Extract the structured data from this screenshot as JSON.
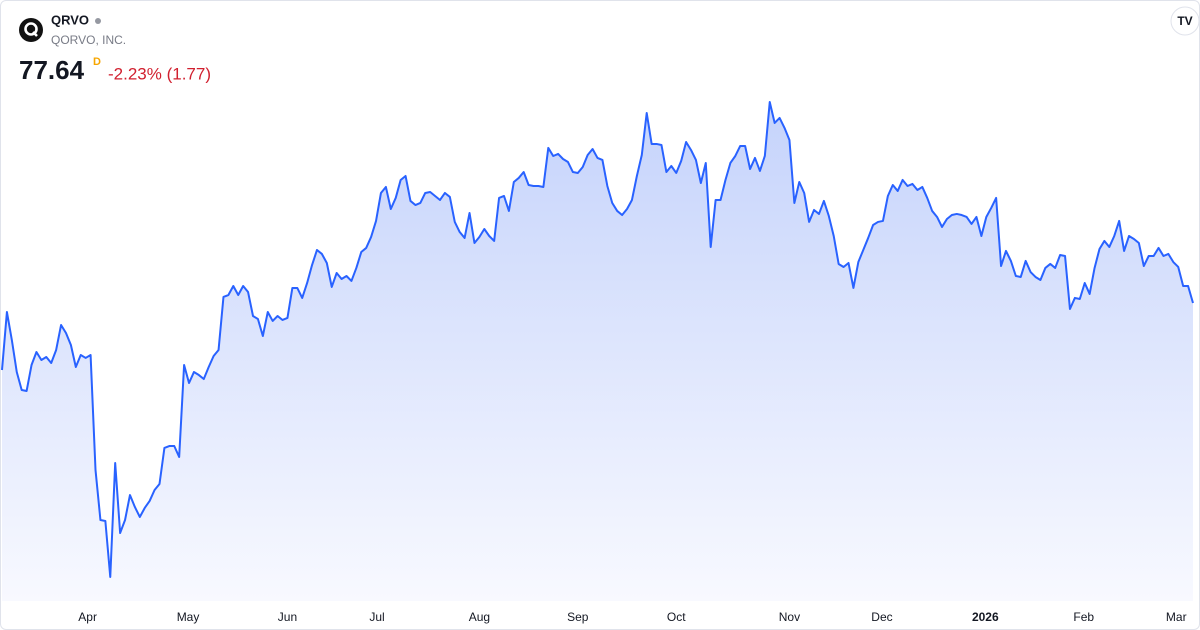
{
  "header": {
    "symbol": "QRVO",
    "company": "QORVO, INC.",
    "price": "77.64",
    "interval": "D",
    "change": "-2.23% (1.77)"
  },
  "chart_data": {
    "type": "area",
    "series": [
      {
        "color": "#2962ff",
        "values": [
          70.74,
          76.71,
          73.83,
          70.53,
          68.68,
          68.58,
          71.25,
          72.59,
          71.77,
          72.08,
          71.46,
          72.8,
          75.37,
          74.55,
          73.31,
          71.05,
          72.28,
          71.98,
          72.28,
          60.44,
          55.29,
          55.19,
          49.42,
          61.16,
          53.95,
          55.29,
          57.86,
          56.63,
          55.6,
          56.53,
          57.25,
          58.38,
          59.0,
          62.71,
          62.91,
          62.91,
          61.78,
          71.25,
          69.4,
          70.53,
          70.22,
          69.81,
          71.05,
          72.18,
          72.8,
          78.26,
          78.46,
          79.39,
          78.46,
          79.39,
          78.77,
          76.3,
          75.99,
          74.24,
          76.71,
          75.79,
          76.3,
          75.89,
          76.1,
          79.19,
          79.19,
          78.16,
          79.7,
          81.55,
          83.1,
          82.69,
          81.76,
          79.29,
          80.73,
          80.11,
          80.42,
          79.91,
          81.25,
          82.89,
          83.31,
          84.44,
          86.09,
          88.97,
          89.59,
          87.32,
          88.46,
          90.31,
          90.72,
          88.15,
          87.73,
          87.94,
          88.97,
          89.07,
          88.66,
          88.25,
          88.97,
          88.56,
          85.99,
          84.95,
          84.34,
          86.91,
          83.82,
          84.44,
          85.26,
          84.54,
          84.03,
          88.46,
          88.66,
          87.12,
          90.1,
          90.52,
          91.13,
          89.79,
          89.69,
          89.69,
          89.59,
          93.61,
          92.78,
          92.99,
          92.47,
          92.16,
          91.13,
          91.03,
          91.65,
          92.88,
          93.5,
          92.58,
          92.37,
          89.69,
          87.94,
          87.12,
          86.7,
          87.32,
          88.25,
          90.72,
          92.88,
          97.21,
          94.02,
          94.02,
          93.91,
          91.13,
          91.75,
          91.03,
          92.27,
          94.22,
          93.4,
          92.37,
          90.0,
          92.06,
          83.41,
          88.25,
          88.25,
          90.31,
          92.06,
          92.78,
          93.81,
          93.81,
          91.44,
          92.58,
          91.24,
          92.78,
          98.34,
          96.18,
          96.7,
          95.67,
          94.43,
          87.94,
          90.1,
          88.97,
          85.99,
          87.22,
          86.81,
          88.15,
          86.6,
          84.54,
          81.66,
          81.35,
          81.76,
          79.19,
          81.86,
          83.1,
          84.34,
          85.67,
          85.99,
          86.09,
          88.66,
          89.79,
          89.18,
          90.31,
          89.69,
          89.9,
          89.28,
          89.59,
          88.46,
          87.12,
          86.5,
          85.47,
          86.29,
          86.7,
          86.81,
          86.7,
          86.5,
          85.78,
          86.5,
          84.54,
          86.5,
          87.43,
          88.46,
          81.45,
          83.0,
          81.97,
          80.42,
          80.32,
          81.97,
          80.83,
          80.32,
          80.01,
          81.25,
          81.66,
          81.25,
          82.58,
          82.48,
          77.02,
          78.16,
          78.05,
          79.7,
          78.57,
          81.25,
          83.2,
          84.03,
          83.41,
          84.54,
          86.09,
          83.0,
          84.54,
          84.23,
          83.82,
          81.45,
          82.48,
          82.48,
          83.31,
          82.48,
          82.69,
          81.86,
          81.35,
          79.39,
          79.39,
          77.64
        ]
      }
    ],
    "xticks": [
      {
        "value": 17.4,
        "label": "Apr"
      },
      {
        "value": 37.8,
        "label": "May"
      },
      {
        "value": 58,
        "label": "Jun"
      },
      {
        "value": 76.2,
        "label": "Jul"
      },
      {
        "value": 97,
        "label": "Aug"
      },
      {
        "value": 117,
        "label": "Sep"
      },
      {
        "value": 137,
        "label": "Oct"
      },
      {
        "value": 160,
        "label": "Nov"
      },
      {
        "value": 178.8,
        "label": "Dec"
      },
      {
        "value": 199.8,
        "label": "2026"
      },
      {
        "value": 219.8,
        "label": "Feb"
      },
      {
        "value": 238.6,
        "label": "Mar"
      }
    ]
  }
}
